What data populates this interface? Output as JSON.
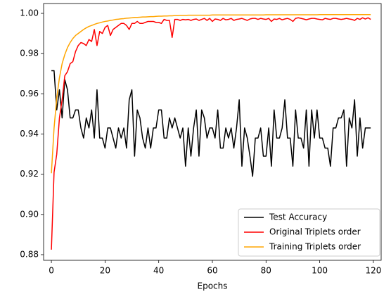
{
  "chart_data": {
    "type": "line",
    "x_label": "Epochs",
    "x": [
      0,
      1,
      2,
      3,
      4,
      5,
      6,
      7,
      8,
      9,
      10,
      11,
      12,
      13,
      14,
      15,
      16,
      17,
      18,
      19,
      20,
      21,
      22,
      23,
      24,
      25,
      26,
      27,
      28,
      29,
      30,
      31,
      32,
      33,
      34,
      35,
      36,
      37,
      38,
      39,
      40,
      41,
      42,
      43,
      44,
      45,
      46,
      47,
      48,
      49,
      50,
      51,
      52,
      53,
      54,
      55,
      56,
      57,
      58,
      59,
      60,
      61,
      62,
      63,
      64,
      65,
      66,
      67,
      68,
      69,
      70,
      71,
      72,
      73,
      74,
      75,
      76,
      77,
      78,
      79,
      80,
      81,
      82,
      83,
      84,
      85,
      86,
      87,
      88,
      89,
      90,
      91,
      92,
      93,
      94,
      95,
      96,
      97,
      98,
      99,
      100,
      101,
      102,
      103,
      104,
      105,
      106,
      107,
      108,
      109,
      110,
      111,
      112,
      113,
      114,
      115,
      116,
      117,
      118,
      119
    ],
    "series": [
      {
        "name": "Test Accuracy",
        "color": "#000000",
        "values": [
          0.9715,
          0.9715,
          0.952,
          0.962,
          0.948,
          0.967,
          0.962,
          0.948,
          0.948,
          0.952,
          0.952,
          0.943,
          0.938,
          0.948,
          0.943,
          0.952,
          0.938,
          0.962,
          0.938,
          0.938,
          0.933,
          0.943,
          0.943,
          0.938,
          0.933,
          0.943,
          0.938,
          0.943,
          0.933,
          0.957,
          0.962,
          0.929,
          0.952,
          0.948,
          0.938,
          0.933,
          0.943,
          0.933,
          0.943,
          0.943,
          0.952,
          0.952,
          0.938,
          0.938,
          0.948,
          0.943,
          0.948,
          0.943,
          0.938,
          0.943,
          0.924,
          0.943,
          0.929,
          0.943,
          0.952,
          0.929,
          0.952,
          0.948,
          0.938,
          0.943,
          0.943,
          0.938,
          0.952,
          0.933,
          0.933,
          0.943,
          0.938,
          0.943,
          0.933,
          0.943,
          0.957,
          0.924,
          0.943,
          0.938,
          0.929,
          0.919,
          0.938,
          0.938,
          0.943,
          0.929,
          0.929,
          0.943,
          0.924,
          0.952,
          0.938,
          0.938,
          0.943,
          0.957,
          0.938,
          0.938,
          0.924,
          0.952,
          0.938,
          0.938,
          0.933,
          0.952,
          0.924,
          0.952,
          0.938,
          0.952,
          0.938,
          0.938,
          0.933,
          0.933,
          0.924,
          0.943,
          0.943,
          0.948,
          0.948,
          0.952,
          0.924,
          0.948,
          0.943,
          0.957,
          0.929,
          0.948,
          0.933,
          0.943,
          0.943,
          0.943
        ]
      },
      {
        "name": "Original Triplets order",
        "color": "#ff0000",
        "values": [
          0.8825,
          0.921,
          0.93,
          0.948,
          0.957,
          0.969,
          0.971,
          0.975,
          0.976,
          0.981,
          0.984,
          0.9855,
          0.985,
          0.984,
          0.987,
          0.986,
          0.992,
          0.984,
          0.991,
          0.99,
          0.993,
          0.994,
          0.989,
          0.992,
          0.993,
          0.994,
          0.995,
          0.995,
          0.994,
          0.992,
          0.995,
          0.995,
          0.996,
          0.995,
          0.995,
          0.9955,
          0.996,
          0.996,
          0.996,
          0.9955,
          0.9955,
          0.995,
          0.997,
          0.9965,
          0.9965,
          0.988,
          0.997,
          0.997,
          0.9965,
          0.997,
          0.9968,
          0.997,
          0.9965,
          0.997,
          0.9972,
          0.9965,
          0.997,
          0.9975,
          0.9965,
          0.9975,
          0.996,
          0.9972,
          0.997,
          0.9965,
          0.9975,
          0.9968,
          0.997,
          0.9975,
          0.9965,
          0.997,
          0.9972,
          0.9975,
          0.997,
          0.9965,
          0.9972,
          0.9975,
          0.9975,
          0.997,
          0.9975,
          0.9972,
          0.997,
          0.9975,
          0.996,
          0.9972,
          0.997,
          0.9975,
          0.9968,
          0.9972,
          0.9975,
          0.997,
          0.996,
          0.9975,
          0.9978,
          0.9975,
          0.9972,
          0.9968,
          0.9972,
          0.9975,
          0.9975,
          0.9972,
          0.997,
          0.9968,
          0.9975,
          0.9972,
          0.997,
          0.9975,
          0.9975,
          0.9972,
          0.997,
          0.9972,
          0.9975,
          0.9972,
          0.997,
          0.9965,
          0.9975,
          0.997,
          0.9978,
          0.9972,
          0.9978,
          0.997
        ]
      },
      {
        "name": "Training Triplets order",
        "color": "#ffa500",
        "values": [
          0.9205,
          0.943,
          0.958,
          0.968,
          0.975,
          0.9795,
          0.983,
          0.9855,
          0.9875,
          0.989,
          0.99,
          0.991,
          0.992,
          0.9928,
          0.9935,
          0.994,
          0.9945,
          0.995,
          0.9953,
          0.9957,
          0.996,
          0.9962,
          0.9965,
          0.9967,
          0.997,
          0.9971,
          0.9973,
          0.9974,
          0.9976,
          0.9977,
          0.9978,
          0.998,
          0.998,
          0.9981,
          0.9982,
          0.9982,
          0.9983,
          0.9984,
          0.9984,
          0.9985,
          0.9986,
          0.9986,
          0.9987,
          0.9987,
          0.9988,
          0.9988,
          0.9989,
          0.9989,
          0.999,
          0.999,
          0.999,
          0.9991,
          0.9991,
          0.9991,
          0.9991,
          0.9991,
          0.9991,
          0.9991,
          0.9991,
          0.9991,
          0.9992,
          0.9992,
          0.9992,
          0.9992,
          0.9992,
          0.9992,
          0.9992,
          0.9992,
          0.9992,
          0.9992,
          0.9992,
          0.9992,
          0.9992,
          0.9992,
          0.9992,
          0.9992,
          0.9992,
          0.9992,
          0.9992,
          0.9992,
          0.9993,
          0.9993,
          0.9993,
          0.9993,
          0.9993,
          0.9993,
          0.9993,
          0.9993,
          0.9993,
          0.9993,
          0.9993,
          0.9993,
          0.9993,
          0.9993,
          0.9993,
          0.9993,
          0.9993,
          0.9993,
          0.9993,
          0.9993,
          0.9994,
          0.9994,
          0.9994,
          0.9994,
          0.9994,
          0.9994,
          0.9994,
          0.9994,
          0.9994,
          0.9994,
          0.9994,
          0.9994,
          0.9994,
          0.9994,
          0.9994,
          0.9994,
          0.9994,
          0.9994,
          0.9994,
          0.9994
        ]
      }
    ],
    "xlim": [
      -2.9,
      122.9
    ],
    "xticks": [
      0,
      20,
      40,
      60,
      80,
      100,
      120
    ],
    "ylim": [
      0.8772,
      1.0049
    ],
    "yticks": [
      0.88,
      {
        "value": 0.9,
        "label": "0.90"
      },
      0.92,
      0.94,
      0.96,
      0.98,
      {
        "value": 1,
        "label": "1.00"
      }
    ],
    "legend": "lower right",
    "grid": false
  }
}
